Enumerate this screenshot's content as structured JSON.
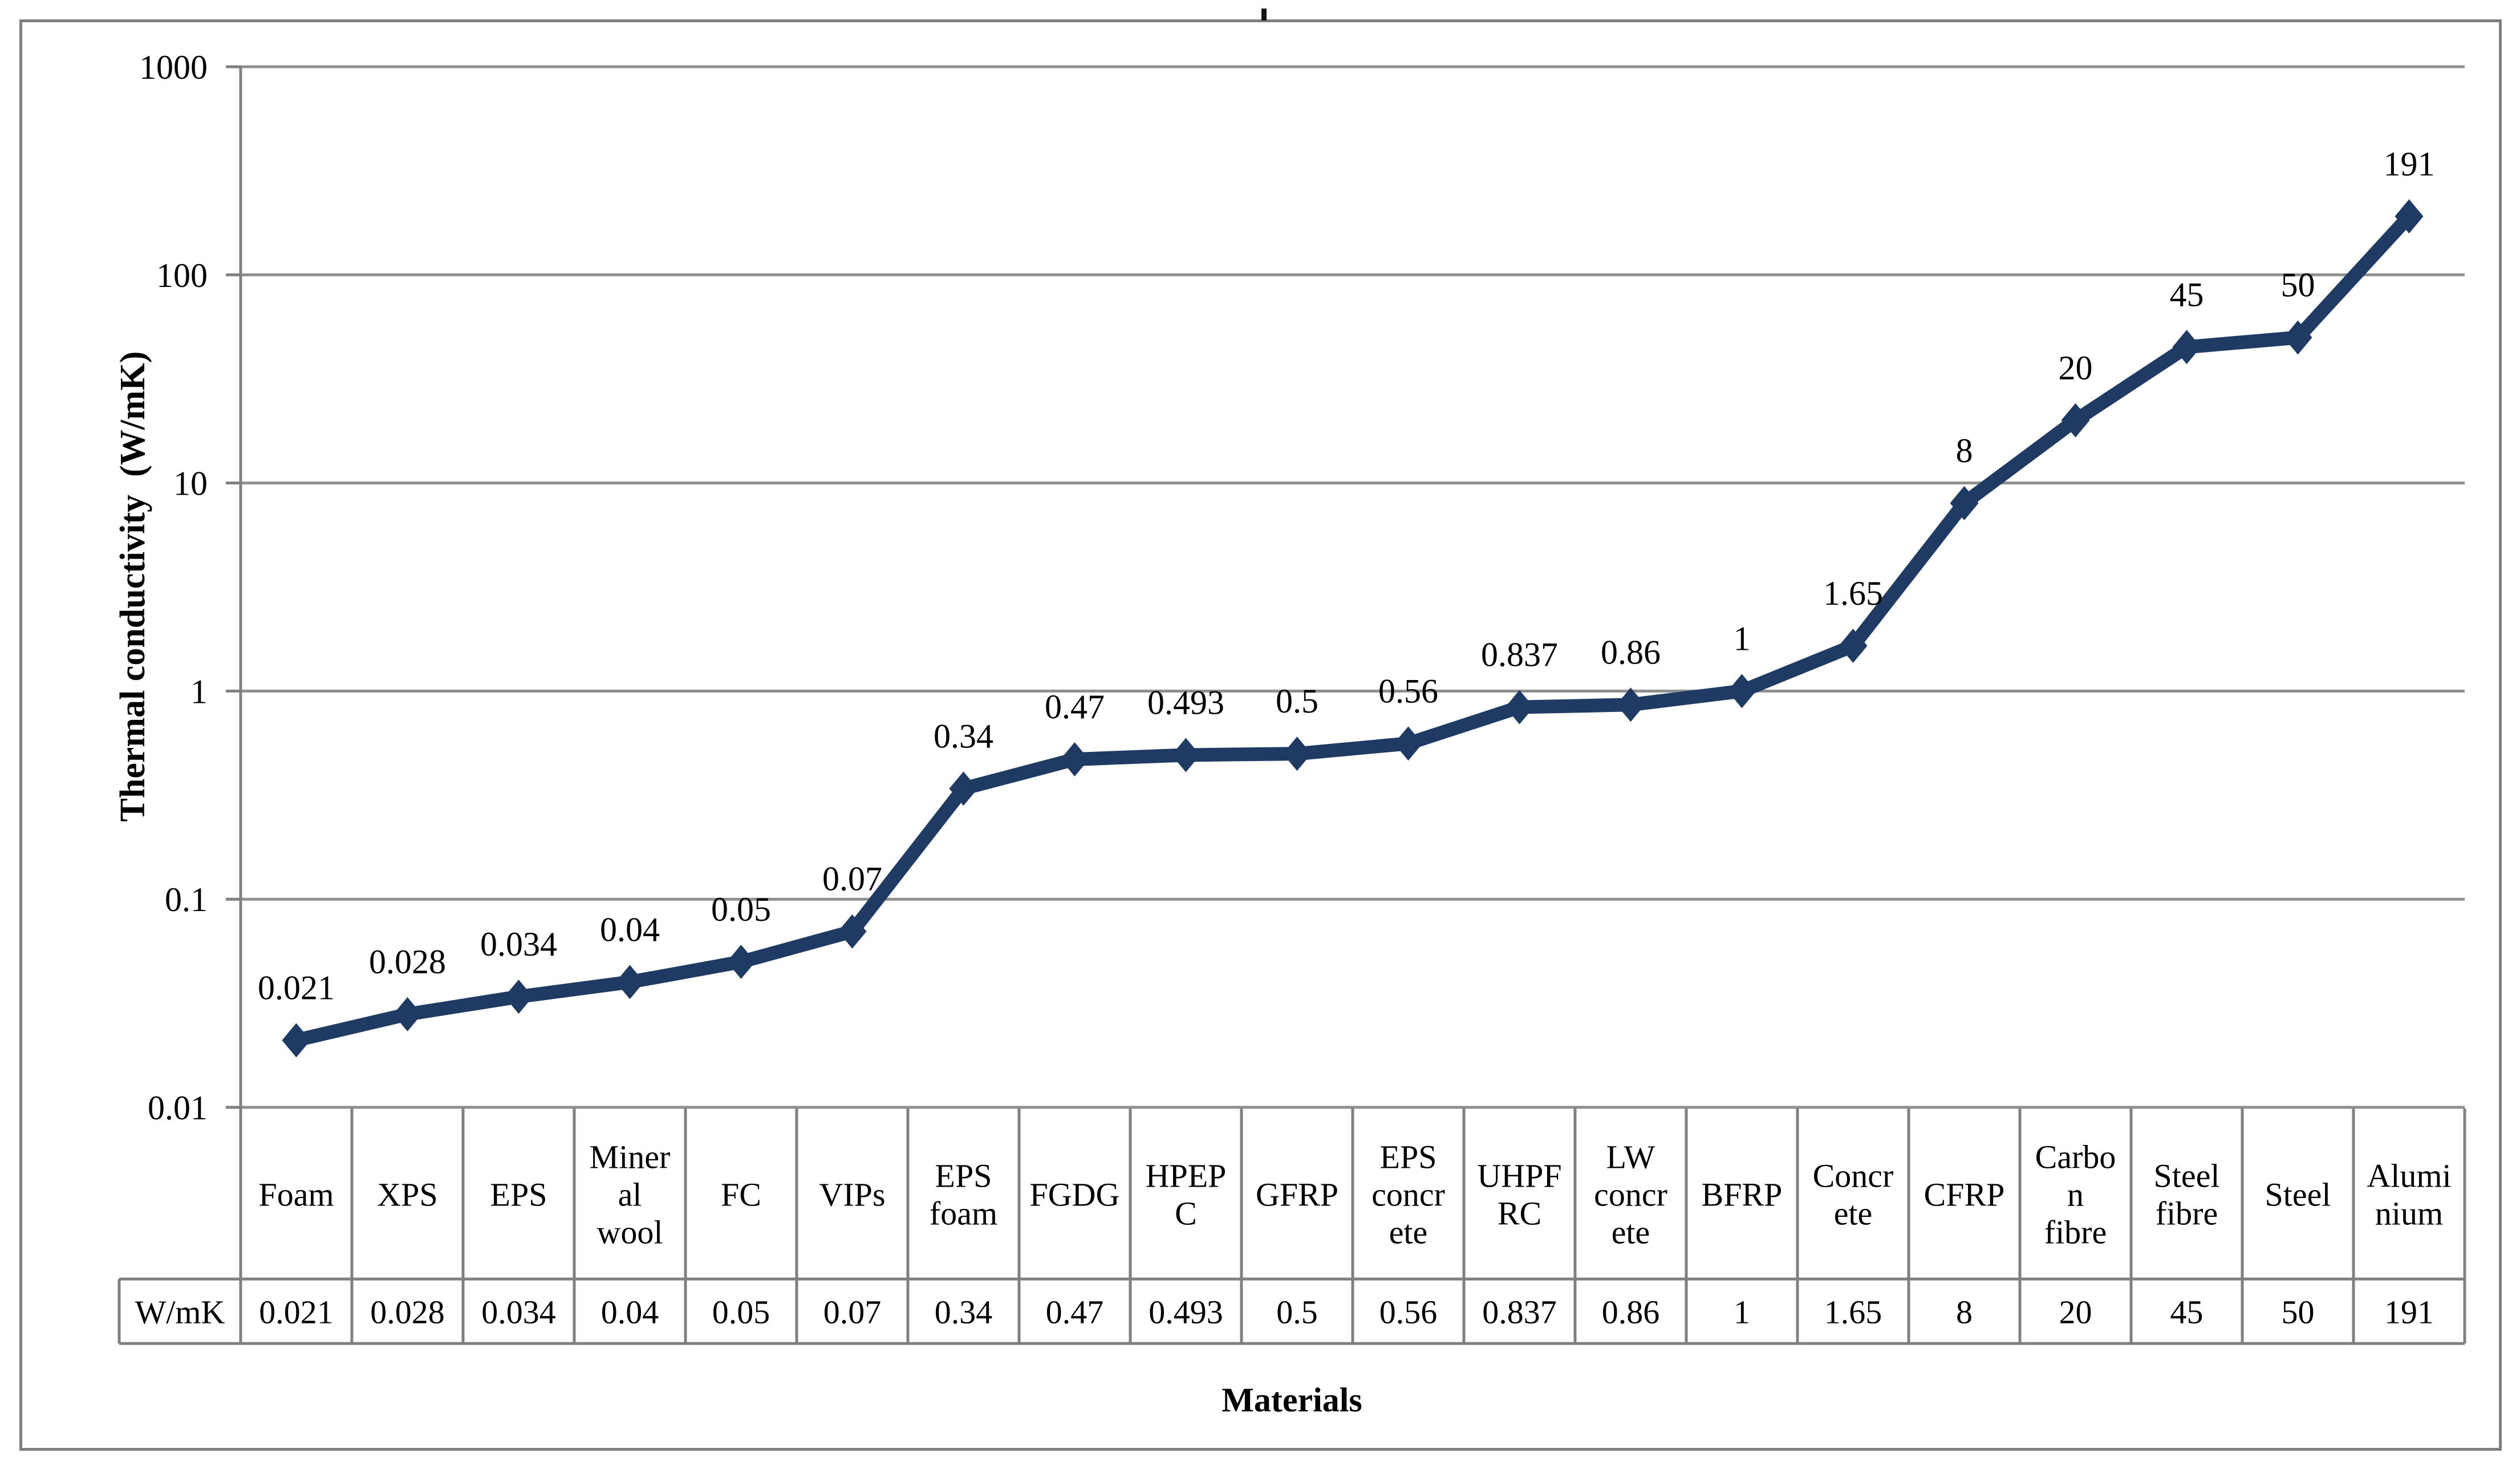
{
  "figure": {
    "background": "#ffffff",
    "border_color": "#7f7f7f",
    "grid_color": "#8f8f8f",
    "axis_color": "#7f7f7f",
    "series_color": "#1F3B63",
    "text_color": "#000000"
  },
  "chart_data": {
    "type": "line",
    "title": "",
    "y_axis_title": "Thermal conductivity  (W/mK)",
    "x_axis_title": "Materials",
    "y_scale": "log",
    "ylim": [
      0.01,
      1000
    ],
    "y_tick_labels": [
      "1000",
      "100",
      "10",
      "1",
      "0.1",
      "0.01"
    ],
    "grid": "horizontal-log-decades",
    "legend": "none",
    "marker": "diamond",
    "series_name": "W/mK",
    "categories": [
      "Foam",
      "XPS",
      "EPS",
      "Mineral wool",
      "FC",
      "VIPs",
      "EPS foam",
      "FGDG",
      "HPEPC",
      "GFRP",
      "EPS concrete",
      "UHPFRC",
      "LW concrete",
      "BFRP",
      "Concrete",
      "CFRP",
      "Carbon fibre",
      "Steel fibre",
      "Steel",
      "Aluminium"
    ],
    "values": [
      0.021,
      0.028,
      0.034,
      0.04,
      0.05,
      0.07,
      0.34,
      0.47,
      0.493,
      0.5,
      0.56,
      0.837,
      0.86,
      1,
      1.65,
      8,
      20,
      45,
      50,
      191
    ],
    "data_labels": [
      "0.021",
      "0.028",
      "0.034",
      "0.04",
      "0.05",
      "0.07",
      "0.34",
      "0.47",
      "0.493",
      "0.5",
      "0.56",
      "0.837",
      "0.86",
      "1",
      "1.65",
      "8",
      "20",
      "45",
      "50",
      "191"
    ]
  },
  "table": {
    "row_header": "W/mK",
    "column_headers": [
      [
        "Foam"
      ],
      [
        "XPS"
      ],
      [
        "EPS"
      ],
      [
        "Miner",
        "al",
        "wool"
      ],
      [
        "FC"
      ],
      [
        "VIPs"
      ],
      [
        "EPS",
        "foam"
      ],
      [
        "FGDG"
      ],
      [
        "HPEP",
        "C"
      ],
      [
        "GFRP"
      ],
      [
        "EPS",
        "concr",
        "ete"
      ],
      [
        "UHPF",
        "RC"
      ],
      [
        "LW",
        "concr",
        "ete"
      ],
      [
        "BFRP"
      ],
      [
        "Concr",
        "ete"
      ],
      [
        "CFRP"
      ],
      [
        "Carbo",
        "n",
        "fibre"
      ],
      [
        "Steel",
        "fibre"
      ],
      [
        "Steel"
      ],
      [
        "Alumi",
        "nium"
      ]
    ],
    "values": [
      "0.021",
      "0.028",
      "0.034",
      "0.04",
      "0.05",
      "0.07",
      "0.34",
      "0.47",
      "0.493",
      "0.5",
      "0.56",
      "0.837",
      "0.86",
      "1",
      "1.65",
      "8",
      "20",
      "45",
      "50",
      "191"
    ]
  }
}
